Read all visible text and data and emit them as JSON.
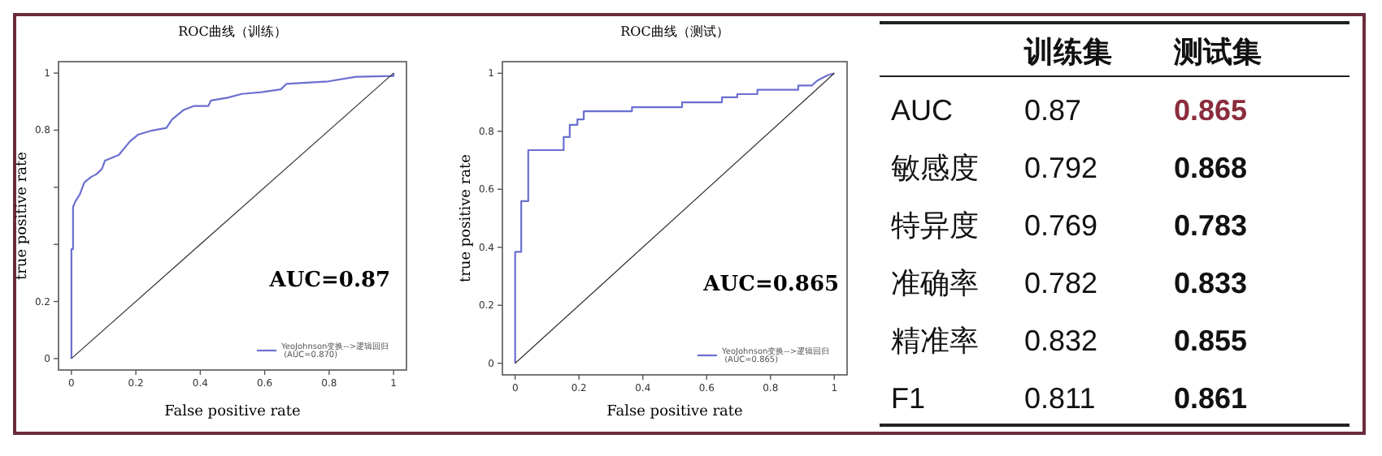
{
  "chart_data": [
    {
      "type": "line",
      "title": "ROC曲线（训练）",
      "xlabel": "False positive rate",
      "ylabel": "true positive rate",
      "xlim": [
        -0.04,
        1.04
      ],
      "ylim": [
        -0.04,
        1.04
      ],
      "xticks": [
        0,
        0.2,
        0.4,
        0.6,
        0.8,
        1
      ],
      "yticks": [
        0,
        0.2,
        {
          "value": 0.4,
          "label": null
        },
        {
          "value": 0.6,
          "label": null
        },
        0.8,
        1
      ],
      "legend": "bottom right",
      "annotations": [
        "AUC=0.87"
      ],
      "series": [
        {
          "name": "YeoJohnson变换-->逻辑回归 (AUC=0.870)",
          "color": "#6a6fd0",
          "x": [
            0,
            0,
            0.005,
            0.005,
            0.012,
            0.026,
            0.04,
            0.061,
            0.078,
            0.095,
            0.104,
            0.147,
            0.182,
            0.208,
            0.251,
            0.295,
            0.312,
            0.347,
            0.381,
            0.425,
            0.433,
            0.485,
            0.529,
            0.589,
            0.65,
            0.667,
            0.797,
            0.884,
            1,
            1
          ],
          "values": [
            0,
            0.383,
            0.383,
            0.531,
            0.55,
            0.575,
            0.617,
            0.636,
            0.646,
            0.665,
            0.693,
            0.713,
            0.761,
            0.785,
            0.799,
            0.808,
            0.837,
            0.87,
            0.885,
            0.885,
            0.904,
            0.914,
            0.927,
            0.933,
            0.943,
            0.962,
            0.971,
            0.987,
            0.99,
            1
          ]
        },
        {
          "color": "#333333",
          "x": [
            0,
            1
          ],
          "values": [
            0,
            1
          ]
        }
      ]
    },
    {
      "type": "line",
      "title": "ROC曲线（测试）",
      "xlabel": "False positive rate",
      "ylabel": "true positive rate",
      "xlim": [
        -0.04,
        1.04
      ],
      "ylim": [
        -0.04,
        1.04
      ],
      "xticks": [
        0,
        0.2,
        0.4,
        0.6,
        0.8,
        1
      ],
      "yticks": [
        0,
        0.2,
        0.4,
        0.6,
        0.8,
        1
      ],
      "legend": "bottom right",
      "annotations": [
        "AUC=0.865"
      ],
      "series": [
        {
          "name": "YeoJohnson变换-->逻辑回归 (AUC=0.865)",
          "color": "#6a6fd0",
          "x": [
            0,
            0,
            0.019,
            0.019,
            0.041,
            0.041,
            0.152,
            0.152,
            0.171,
            0.171,
            0.195,
            0.195,
            0.215,
            0.215,
            0.366,
            0.366,
            0.523,
            0.523,
            0.648,
            0.648,
            0.696,
            0.696,
            0.759,
            0.759,
            0.887,
            0.887,
            0.93,
            0.947,
            0.964,
            0.981,
            1
          ],
          "values": [
            0,
            0.384,
            0.384,
            0.559,
            0.559,
            0.735,
            0.735,
            0.78,
            0.78,
            0.822,
            0.822,
            0.841,
            0.841,
            0.869,
            0.869,
            0.883,
            0.883,
            0.9,
            0.9,
            0.917,
            0.917,
            0.928,
            0.928,
            0.943,
            0.943,
            0.958,
            0.958,
            0.975,
            0.985,
            0.994,
            1
          ]
        },
        {
          "color": "#333333",
          "x": [
            0,
            1
          ],
          "values": [
            0,
            1
          ]
        }
      ]
    },
    {
      "type": "other",
      "categories": [
        "训练集",
        "测试集"
      ],
      "y_categories": [
        "AUC",
        "敏感度",
        "特异度",
        "准确率",
        "精准率",
        "F1"
      ],
      "cell_labels": [
        [
          "0.87",
          "0.865"
        ],
        [
          "0.792",
          "0.868"
        ],
        [
          "0.769",
          "0.783"
        ],
        [
          "0.782",
          "0.833"
        ],
        [
          "0.832",
          "0.855"
        ],
        [
          "0.811",
          "0.861"
        ]
      ]
    }
  ]
}
